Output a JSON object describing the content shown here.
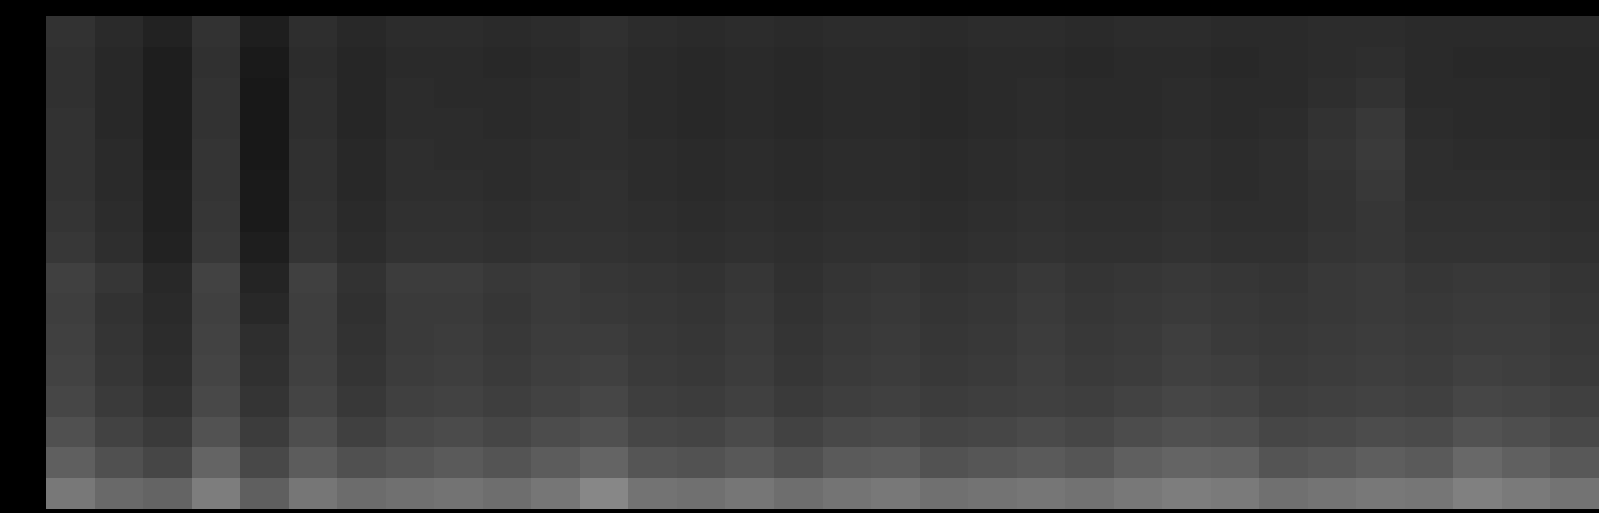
{
  "chart_data": {
    "type": "heatmap",
    "tick_labels": false,
    "grid": false,
    "xlim": [
      -0.5,
      31.5
    ],
    "ylim": [
      -0.5,
      15.5
    ],
    "zlim": [
      0,
      255
    ],
    "z": [
      [
        120,
        105,
        100,
        125,
        95,
        118,
        108,
        112,
        115,
        110,
        118,
        135,
        115,
        112,
        118,
        110,
        116,
        120,
        112,
        115,
        118,
        114,
        120,
        125,
        122,
        112,
        116,
        120,
        118,
        128,
        122,
        115
      ],
      [
        95,
        80,
        70,
        100,
        72,
        92,
        80,
        85,
        90,
        84,
        92,
        100,
        85,
        82,
        88,
        80,
        90,
        92,
        82,
        86,
        90,
        85,
        95,
        100,
        98,
        84,
        88,
        94,
        90,
        104,
        96,
        88
      ],
      [
        80,
        66,
        58,
        82,
        60,
        78,
        64,
        72,
        75,
        70,
        76,
        80,
        70,
        68,
        74,
        66,
        72,
        74,
        68,
        70,
        74,
        70,
        76,
        80,
        78,
        70,
        72,
        76,
        74,
        82,
        78,
        72
      ],
      [
        70,
        58,
        50,
        72,
        52,
        68,
        56,
        64,
        66,
        62,
        66,
        70,
        62,
        60,
        64,
        58,
        62,
        64,
        60,
        62,
        64,
        62,
        66,
        70,
        68,
        62,
        64,
        66,
        64,
        70,
        68,
        64
      ],
      [
        66,
        54,
        46,
        68,
        48,
        64,
        52,
        60,
        62,
        58,
        62,
        64,
        58,
        56,
        60,
        54,
        58,
        60,
        56,
        58,
        62,
        58,
        60,
        64,
        62,
        58,
        60,
        62,
        60,
        64,
        62,
        58
      ],
      [
        64,
        52,
        44,
        66,
        46,
        62,
        50,
        58,
        60,
        56,
        60,
        60,
        56,
        54,
        58,
        52,
        56,
        58,
        54,
        56,
        60,
        56,
        58,
        62,
        58,
        56,
        58,
        60,
        58,
        60,
        60,
        56
      ],
      [
        62,
        50,
        42,
        64,
        40,
        62,
        48,
        58,
        58,
        54,
        58,
        56,
        54,
        52,
        56,
        50,
        54,
        56,
        52,
        54,
        58,
        54,
        56,
        58,
        56,
        54,
        56,
        58,
        56,
        58,
        58,
        54
      ],
      [
        64,
        54,
        40,
        66,
        36,
        64,
        50,
        60,
        60,
        56,
        58,
        54,
        52,
        50,
        54,
        48,
        52,
        54,
        50,
        52,
        56,
        52,
        54,
        56,
        54,
        52,
        56,
        58,
        54,
        56,
        56,
        52
      ],
      [
        55,
        46,
        34,
        56,
        30,
        52,
        44,
        50,
        50,
        48,
        50,
        50,
        48,
        46,
        48,
        46,
        48,
        48,
        46,
        48,
        50,
        48,
        48,
        50,
        48,
        48,
        52,
        54,
        50,
        50,
        50,
        48
      ],
      [
        52,
        44,
        32,
        54,
        26,
        50,
        42,
        48,
        48,
        46,
        48,
        48,
        46,
        44,
        46,
        44,
        46,
        46,
        44,
        46,
        48,
        46,
        46,
        48,
        46,
        46,
        50,
        54,
        48,
        48,
        48,
        46
      ],
      [
        50,
        42,
        32,
        52,
        26,
        48,
        40,
        46,
        46,
        44,
        46,
        48,
        44,
        42,
        44,
        42,
        44,
        44,
        42,
        44,
        46,
        44,
        44,
        46,
        44,
        46,
        50,
        56,
        46,
        46,
        46,
        44
      ],
      [
        50,
        42,
        30,
        52,
        24,
        48,
        40,
        46,
        44,
        44,
        46,
        46,
        44,
        42,
        44,
        42,
        44,
        44,
        42,
        44,
        46,
        44,
        44,
        46,
        44,
        46,
        52,
        58,
        46,
        44,
        44,
        42
      ],
      [
        50,
        40,
        30,
        50,
        24,
        46,
        38,
        44,
        44,
        42,
        44,
        46,
        42,
        40,
        42,
        40,
        42,
        42,
        40,
        42,
        44,
        42,
        42,
        44,
        42,
        44,
        50,
        56,
        44,
        42,
        42,
        40
      ],
      [
        48,
        40,
        30,
        50,
        24,
        46,
        38,
        44,
        42,
        42,
        44,
        46,
        42,
        40,
        42,
        40,
        42,
        42,
        40,
        42,
        44,
        42,
        42,
        44,
        42,
        42,
        46,
        50,
        42,
        42,
        42,
        40
      ],
      [
        48,
        40,
        30,
        48,
        26,
        44,
        38,
        42,
        42,
        40,
        42,
        46,
        42,
        40,
        42,
        40,
        42,
        42,
        40,
        42,
        42,
        40,
        42,
        42,
        40,
        42,
        44,
        46,
        42,
        40,
        40,
        40
      ],
      [
        50,
        42,
        34,
        50,
        30,
        46,
        40,
        44,
        44,
        42,
        44,
        48,
        44,
        42,
        44,
        42,
        44,
        44,
        42,
        44,
        44,
        42,
        44,
        44,
        42,
        42,
        44,
        44,
        42,
        42,
        42,
        42
      ]
    ]
  }
}
